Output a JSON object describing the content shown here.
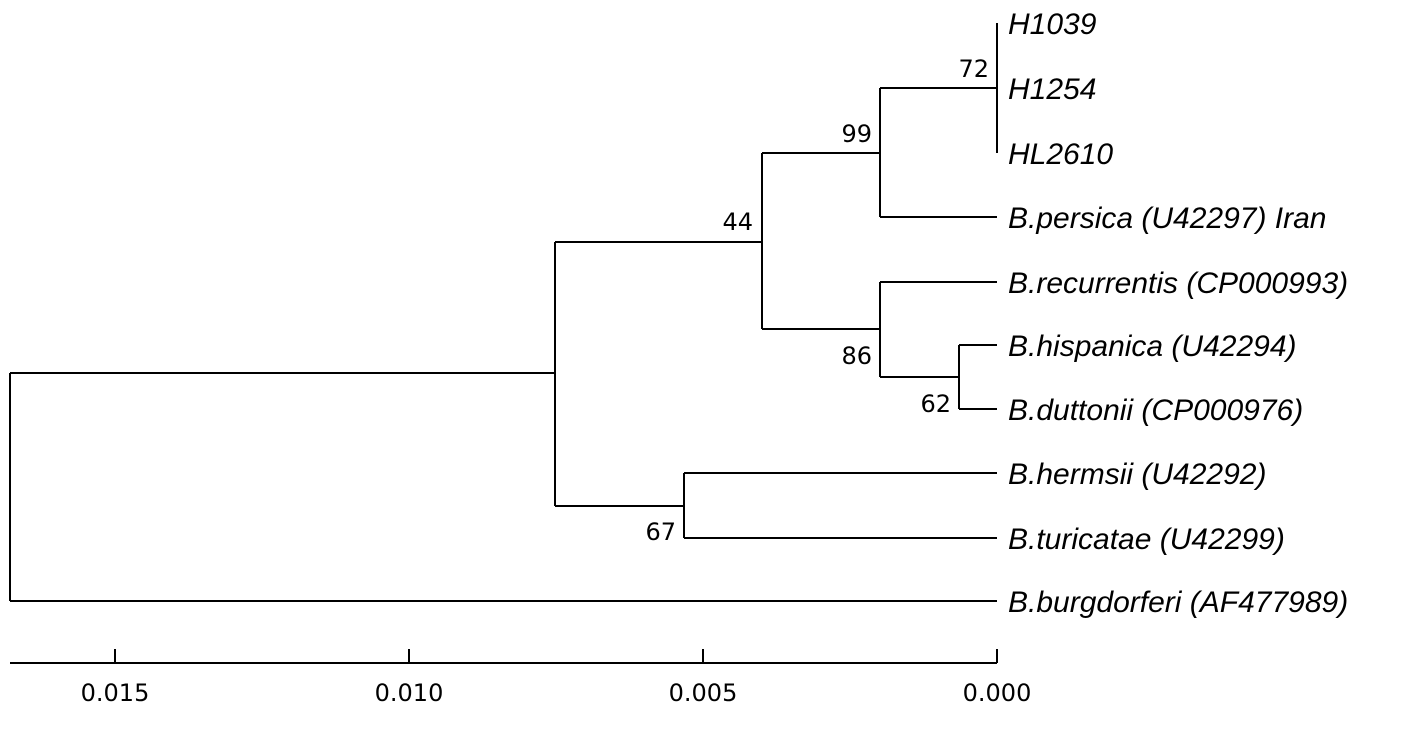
{
  "figure": {
    "type": "phylogenetic-tree",
    "colors": {
      "line": "#000000",
      "background": "#ffffff"
    }
  },
  "taxa": [
    {
      "label": "H1039"
    },
    {
      "label": "H1254"
    },
    {
      "label": "HL2610"
    },
    {
      "label": "B.persica (U42297) Iran"
    },
    {
      "label": "B.recurrentis (CP000993)"
    },
    {
      "label": "B.hispanica (U42294)"
    },
    {
      "label": "B.duttonii (CP000976)"
    },
    {
      "label": "B.hermsii (U42292)"
    },
    {
      "label": "B.turicatae (U42299)"
    },
    {
      "label": "B.burgdorferi (AF477989)"
    }
  ],
  "bootstrap": [
    {
      "node": "H-clade",
      "value": "72"
    },
    {
      "node": "persica-clade",
      "value": "99"
    },
    {
      "node": "relapsing-fever-old-world",
      "value": "44"
    },
    {
      "node": "recurrentis-clade",
      "value": "86"
    },
    {
      "node": "hispanica-duttonii",
      "value": "62"
    },
    {
      "node": "hermsii-turicatae",
      "value": "67"
    }
  ],
  "scale_axis": {
    "ticks": [
      "0.015",
      "0.010",
      "0.005",
      "0.000"
    ],
    "tick_values": [
      0.015,
      0.01,
      0.005,
      0.0
    ]
  }
}
